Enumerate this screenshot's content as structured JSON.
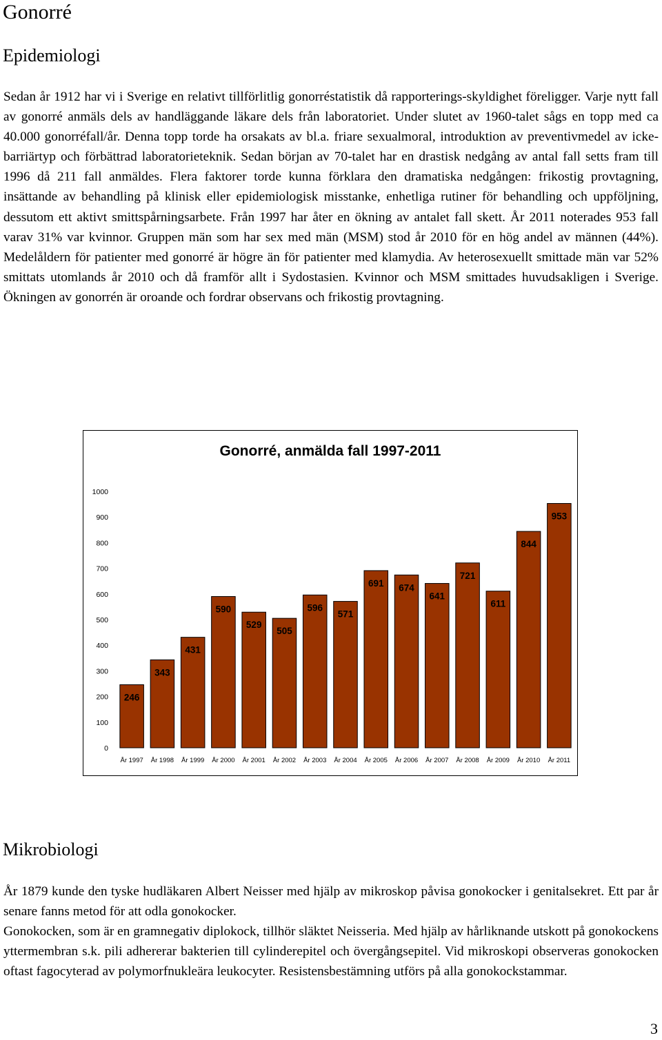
{
  "heading": "Gonorré",
  "sections": [
    {
      "title": "Epidemiologi",
      "paragraphs": [
        "Sedan år 1912 har vi i Sverige en relativt tillförlitlig gonorréstatistik då rapporterings-skyldighet föreligger. Varje nytt fall av gonorré anmäls dels av handläggande läkare dels från laboratoriet. Under slutet av 1960-talet sågs en topp med ca 40.000 gonorréfall/år. Denna topp torde ha orsakats av bl.a. friare sexualmoral, introduktion av preventivmedel av icke-barriärtyp och förbättrad laboratorieteknik. Sedan början av 70-talet har en drastisk nedgång av antal fall setts fram till 1996 då 211 fall anmäldes. Flera faktorer torde kunna förklara den dramatiska nedgången: frikostig provtagning, insättande av behandling på klinisk eller epidemiologisk misstanke, enhetliga rutiner för behandling och uppföljning, dessutom ett aktivt smittspårningsarbete. Från 1997 har åter en ökning av antalet fall skett. År 2011 noterades 953 fall varav 31% var kvinnor. Gruppen män som har sex med män (MSM) stod år 2010 för en hög andel av männen (44%). Medelåldern för patienter med gonorré är högre än för patienter med klamydia. Av heterosexuellt smittade män var 52% smittats utomlands år 2010 och då framför allt i Sydostasien. Kvinnor och MSM smittades huvudsakligen i Sverige. Ökningen av gonorrén är oroande och fordrar observans och frikostig provtagning."
      ]
    },
    {
      "title": "Mikrobiologi",
      "paragraphs": [
        "År 1879 kunde den tyske hudläkaren Albert Neisser med hjälp av mikroskop påvisa gonokocker i genitalsekret. Ett par år senare fanns metod för att odla gonokocker.",
        "Gonokocken, som är en gramnegativ diplokock, tillhör släktet Neisseria. Med hjälp av hårliknande utskott på gonokockens yttermembran s.k. pili adhererar bakterien till cylinderepitel och övergångsepitel. Vid mikroskopi observeras gonokocken oftast fagocyterad av polymorfnukleära leukocyter. Resistensbestämning utförs på alla gonokockstammar."
      ]
    }
  ],
  "chart_data": {
    "type": "bar",
    "title": "Gonorré, anmälda fall 1997-2011",
    "categories": [
      "År 1997",
      "År 1998",
      "År 1999",
      "År 2000",
      "År 2001",
      "År 2002",
      "År 2003",
      "År 2004",
      "År 2005",
      "År 2006",
      "År 2007",
      "År 2008",
      "År 2009",
      "År 2010",
      "År 2011"
    ],
    "values": [
      246,
      343,
      431,
      590,
      529,
      505,
      596,
      571,
      691,
      674,
      641,
      721,
      611,
      844,
      953
    ],
    "ylim": [
      0,
      1000
    ],
    "yticks": [
      0,
      100,
      200,
      300,
      400,
      500,
      600,
      700,
      800,
      900,
      1000
    ],
    "bar_color": "#993300",
    "grid": false,
    "legend": "none"
  },
  "page_number": "3"
}
